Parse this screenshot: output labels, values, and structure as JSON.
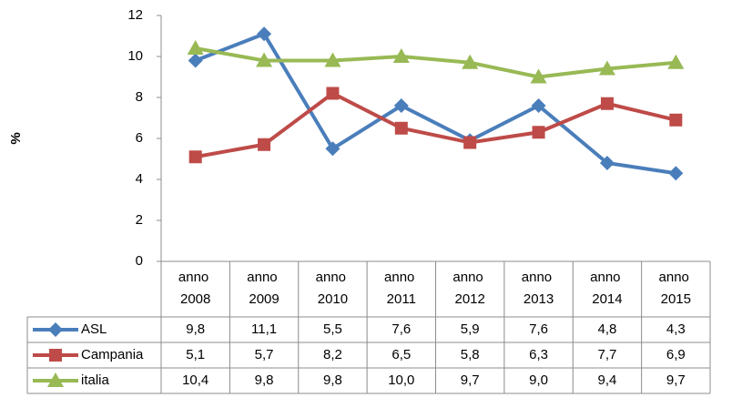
{
  "chart_data": {
    "type": "line",
    "y_label": "%",
    "categories": [
      "anno 2008",
      "anno 2009",
      "anno 2010",
      "anno 2011",
      "anno 2012",
      "anno 2013",
      "anno 2014",
      "anno 2015"
    ],
    "series": [
      {
        "name": "ASL",
        "color": "#4a7ebb",
        "marker": "diamond",
        "values": [
          9.8,
          11.1,
          5.5,
          7.6,
          5.9,
          7.6,
          4.8,
          4.3
        ],
        "value_labels": [
          "9,8",
          "11,1",
          "5,5",
          "7,6",
          "5,9",
          "7,6",
          "4,8",
          "4,3"
        ]
      },
      {
        "name": "Campania",
        "color": "#be4b48",
        "marker": "square",
        "values": [
          5.1,
          5.7,
          8.2,
          6.5,
          5.8,
          6.3,
          7.7,
          6.9
        ],
        "value_labels": [
          "5,1",
          "5,7",
          "8,2",
          "6,5",
          "5,8",
          "6,3",
          "7,7",
          "6,9"
        ]
      },
      {
        "name": "italia",
        "color": "#98b954",
        "marker": "triangle",
        "values": [
          10.4,
          9.8,
          9.8,
          10.0,
          9.7,
          9.0,
          9.4,
          9.7
        ],
        "value_labels": [
          "10,4",
          "9,8",
          "9,8",
          "10,0",
          "9,7",
          "9,0",
          "9,4",
          "9,7"
        ]
      }
    ],
    "ylim": [
      0,
      12
    ],
    "yticks": [
      0,
      2,
      4,
      6,
      8,
      10,
      12
    ]
  }
}
